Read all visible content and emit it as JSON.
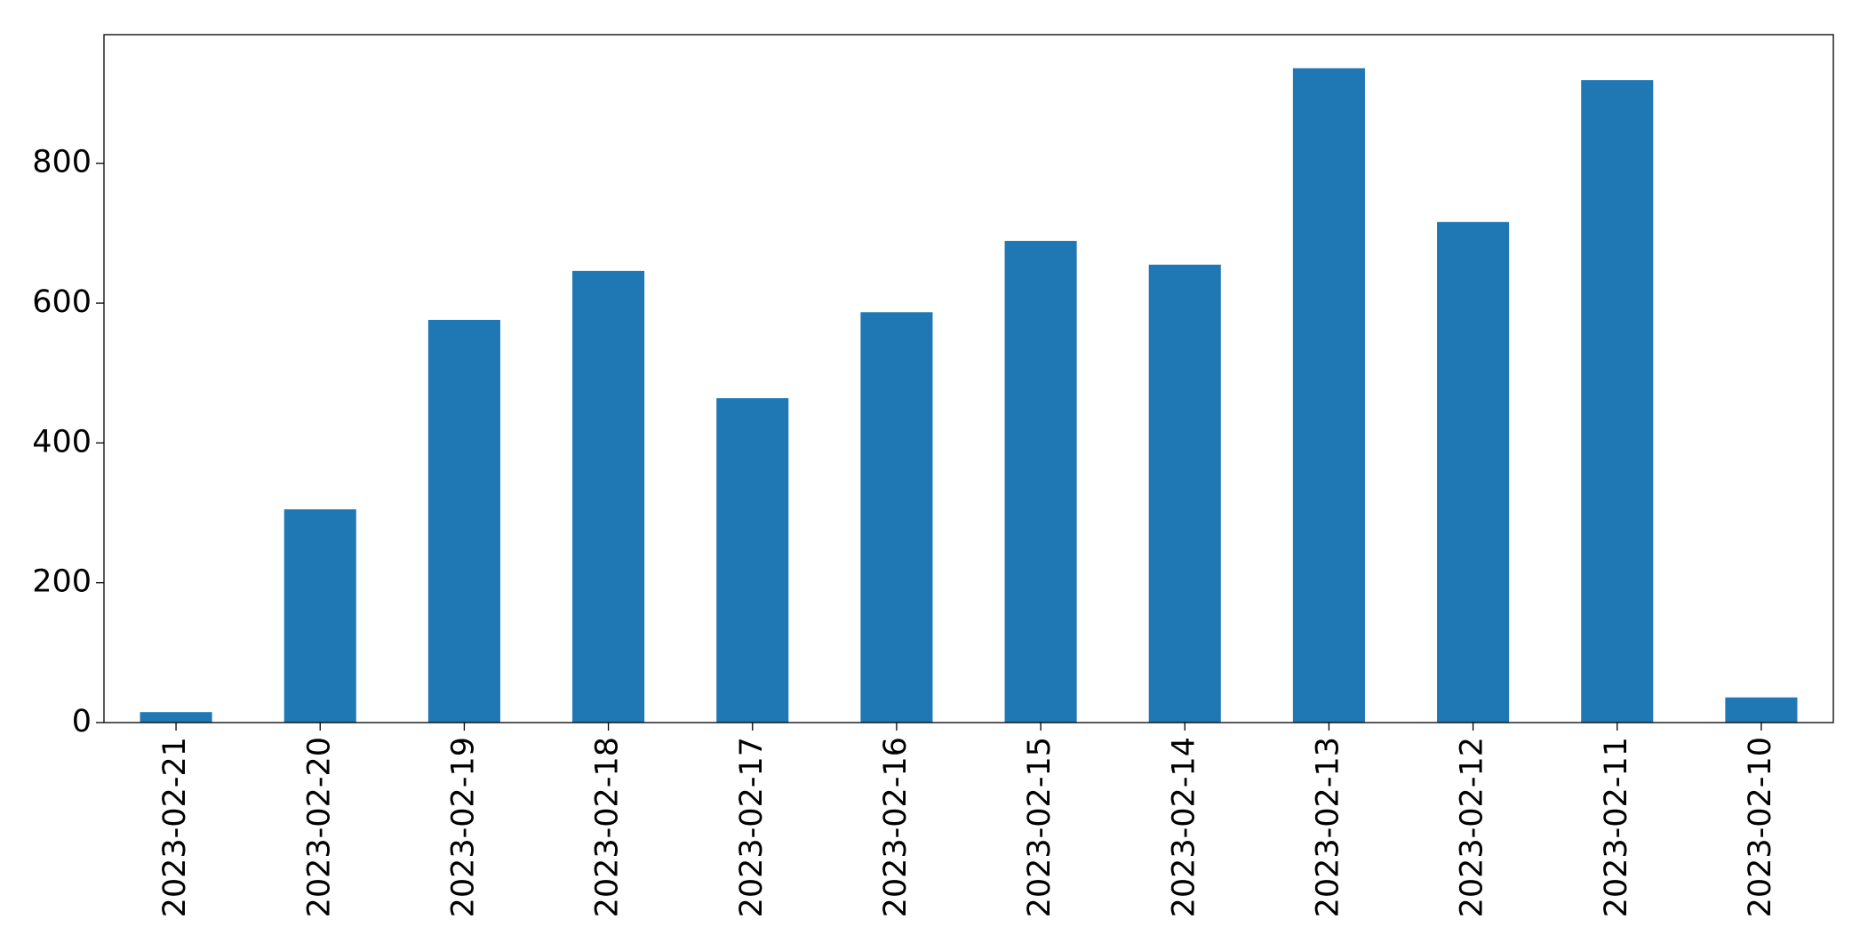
{
  "chart_data": {
    "type": "bar",
    "categories": [
      "2023-02-21",
      "2023-02-20",
      "2023-02-19",
      "2023-02-18",
      "2023-02-17",
      "2023-02-16",
      "2023-02-15",
      "2023-02-14",
      "2023-02-13",
      "2023-02-12",
      "2023-02-11",
      "2023-02-10"
    ],
    "values": [
      15,
      305,
      576,
      646,
      464,
      587,
      689,
      655,
      936,
      716,
      919,
      36
    ],
    "color": "#1f77b4",
    "ylim": [
      0,
      984
    ],
    "yticks": [
      0,
      200,
      400,
      600,
      800
    ],
    "grid": false
  }
}
